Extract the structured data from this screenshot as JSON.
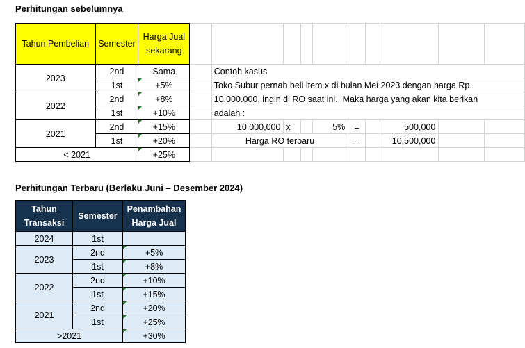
{
  "section1_title": "Perhitungan sebelumnya",
  "table1": {
    "headers": [
      "Tahun Pembelian",
      "Semester",
      "Harga Jual sekarang"
    ],
    "groups": [
      {
        "year": "2023",
        "rows": [
          {
            "sem": "2nd",
            "price": "Sama"
          },
          {
            "sem": "1st",
            "price": "+5%"
          }
        ]
      },
      {
        "year": "2022",
        "rows": [
          {
            "sem": "2nd",
            "price": "+8%"
          },
          {
            "sem": "1st",
            "price": "+10%"
          }
        ]
      },
      {
        "year": "2021",
        "rows": [
          {
            "sem": "2nd",
            "price": "+15%"
          },
          {
            "sem": "1st",
            "price": "+20%"
          }
        ]
      }
    ],
    "last": {
      "year": "< 2021",
      "price": "+25%"
    }
  },
  "example": {
    "heading": "Contoh kasus",
    "line1": "Toko Subur pernah beli item x di bulan Mei 2023 dengan harga Rp.",
    "line2": "10.000.000, ingin di RO saat ini.. Maka harga yang akan kita berikan",
    "line3": "adalah :",
    "calc_base": "10,000,000",
    "calc_op": "x",
    "calc_pct": "5%",
    "calc_eq": "=",
    "calc_result": "500,000",
    "ro_label": "Harga RO terbaru",
    "ro_eq": "=",
    "ro_value": "10,500,000"
  },
  "section2_title": "Perhitungan Terbaru (Berlaku Juni – Desember 2024)",
  "table2": {
    "headers": [
      "Tahun Transaksi",
      "Semester",
      "Penambahan Harga Jual"
    ],
    "first": {
      "year": "2024",
      "sem": "1st",
      "price": ""
    },
    "groups": [
      {
        "year": "2023",
        "rows": [
          {
            "sem": "2nd",
            "price": "+5%"
          },
          {
            "sem": "1st",
            "price": "+8%"
          }
        ]
      },
      {
        "year": "2022",
        "rows": [
          {
            "sem": "2nd",
            "price": "+10%"
          },
          {
            "sem": "1st",
            "price": "+15%"
          }
        ]
      },
      {
        "year": "2021",
        "rows": [
          {
            "sem": "2nd",
            "price": "+20%"
          },
          {
            "sem": "1st",
            "price": "+25%"
          }
        ]
      }
    ],
    "last": {
      "year": ">2021",
      "price": "+30%"
    }
  },
  "colors": {
    "header_yellow": "#ffff00",
    "header_navy": "#17324d",
    "cell_blue": "#ddebf7",
    "flag_green": "#1e7a1e"
  }
}
